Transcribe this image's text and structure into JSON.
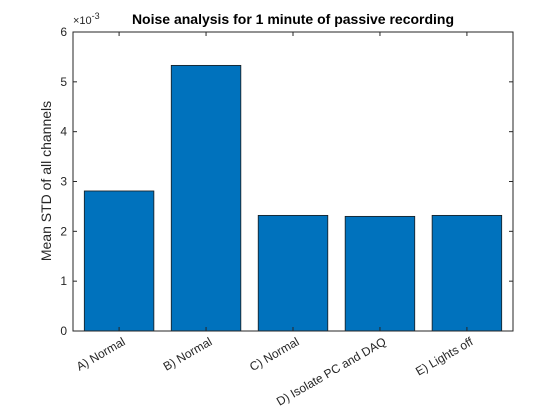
{
  "chart_data": {
    "type": "bar",
    "title": "Noise analysis for 1 minute of passive recording",
    "ylabel": "Mean STD of all channels",
    "xlabel": "",
    "y_exponent_label": "×10",
    "y_exponent": "-3",
    "categories": [
      "A) Normal",
      "B) Normal",
      "C) Normal",
      "D) Isolate PC and DAQ",
      "E) Lights off"
    ],
    "values": [
      0.00281,
      0.00533,
      0.00232,
      0.0023,
      0.00232
    ],
    "ylim": [
      0,
      0.006
    ],
    "yticks": [
      0,
      0.001,
      0.002,
      0.003,
      0.004,
      0.005,
      0.006
    ],
    "ytick_labels": [
      "0",
      "1",
      "2",
      "3",
      "4",
      "5",
      "6"
    ],
    "grid": false,
    "colors": {
      "bar": "#0072BD",
      "bar_edge": "#1a1a1a",
      "axis": "#262626",
      "text": "#262626"
    }
  }
}
